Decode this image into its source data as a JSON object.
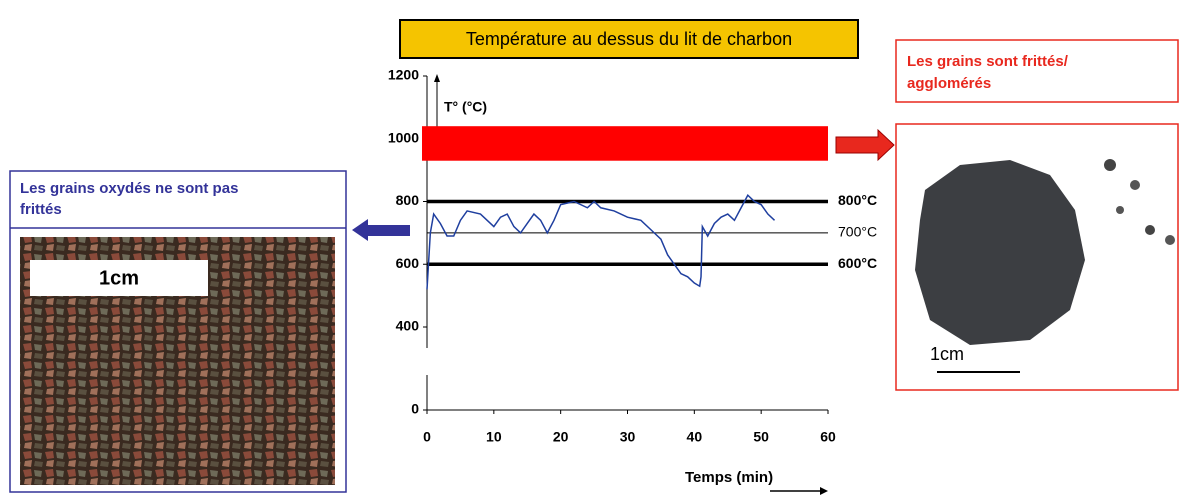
{
  "chart_data": {
    "type": "line",
    "title": "Température au dessus du lit de charbon",
    "y_label": "T° (°C)",
    "x_label": "Temps (min)",
    "xlim": [
      0,
      60
    ],
    "xticks": [
      0,
      10,
      20,
      30,
      40,
      50,
      60
    ],
    "ylim": [
      0,
      1200
    ],
    "yticks": [
      0,
      400,
      600,
      800,
      1000,
      1200
    ],
    "band": {
      "from": 930,
      "to": 1040,
      "color": "#ff0000"
    },
    "reference_lines": [
      {
        "value": 800,
        "label": "800°C",
        "style": "thick"
      },
      {
        "value": 700,
        "label": "700°C",
        "style": "thin"
      },
      {
        "value": 600,
        "label": "600°C",
        "style": "thick"
      }
    ],
    "series": [
      {
        "color": "#1f3f9f",
        "x": [
          0,
          0.5,
          1,
          2,
          3,
          4,
          5,
          6,
          8,
          10,
          11,
          12,
          13,
          14,
          15,
          16,
          17,
          18,
          19,
          20,
          22,
          24,
          25,
          26,
          28,
          30,
          32,
          34,
          35,
          36,
          37,
          38,
          39,
          40,
          40.8,
          41,
          41.2,
          42,
          43,
          44,
          45,
          46,
          47,
          48,
          49,
          50,
          51,
          52
        ],
        "values": [
          520,
          700,
          760,
          730,
          690,
          690,
          740,
          770,
          760,
          720,
          750,
          760,
          720,
          700,
          730,
          760,
          740,
          700,
          740,
          790,
          800,
          780,
          800,
          780,
          770,
          750,
          740,
          700,
          680,
          630,
          600,
          570,
          560,
          540,
          530,
          560,
          720,
          690,
          730,
          750,
          760,
          740,
          780,
          820,
          800,
          790,
          760,
          740
        ]
      }
    ]
  },
  "left_panel": {
    "title_lines": [
      "Les grains oxydés ne sont pas",
      "frittés"
    ],
    "scale_label": "1cm"
  },
  "right_panel": {
    "title_lines": [
      "Les grains sont frittés/",
      "agglomérés"
    ],
    "scale_label": "1cm"
  }
}
